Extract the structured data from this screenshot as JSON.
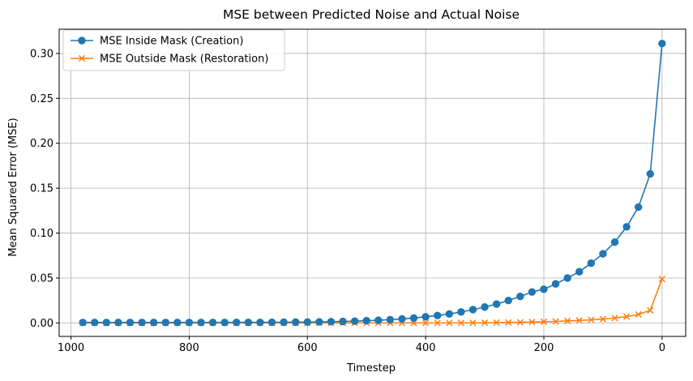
{
  "chart_data": {
    "type": "line",
    "title": "MSE between Predicted Noise and Actual Noise",
    "xlabel": "Timestep",
    "ylabel": "Mean Squared Error (MSE)",
    "xlim": [
      1020,
      -40
    ],
    "ylim": [
      -0.015,
      0.327
    ],
    "x_inverted": true,
    "grid": true,
    "legend_position": "top-left",
    "xticks": [
      1000,
      800,
      600,
      400,
      200,
      0
    ],
    "xtick_labels": [
      "1000",
      "800",
      "600",
      "400",
      "200",
      "0"
    ],
    "yticks": [
      0.0,
      0.05,
      0.1,
      0.15,
      0.2,
      0.25,
      0.3
    ],
    "ytick_labels": [
      "0.00",
      "0.05",
      "0.10",
      "0.15",
      "0.20",
      "0.25",
      "0.30"
    ],
    "x": [
      980,
      960,
      940,
      920,
      900,
      880,
      860,
      840,
      820,
      800,
      780,
      760,
      740,
      720,
      700,
      680,
      660,
      640,
      620,
      600,
      580,
      560,
      540,
      520,
      500,
      480,
      460,
      440,
      420,
      400,
      380,
      360,
      340,
      320,
      300,
      280,
      260,
      240,
      220,
      200,
      180,
      160,
      140,
      120,
      100,
      80,
      60,
      40,
      20,
      0
    ],
    "series": [
      {
        "name": "MSE Inside Mask (Creation)",
        "color": "#1f77b4",
        "marker": "circle",
        "values": [
          0.0005,
          0.0005,
          0.0005,
          0.0005,
          0.0005,
          0.0005,
          0.0005,
          0.0005,
          0.0005,
          0.0005,
          0.0005,
          0.0005,
          0.0005,
          0.0006,
          0.0006,
          0.0006,
          0.0007,
          0.0008,
          0.0009,
          0.001,
          0.0012,
          0.0014,
          0.0017,
          0.002,
          0.0025,
          0.003,
          0.0037,
          0.0045,
          0.0055,
          0.0068,
          0.0083,
          0.01,
          0.0122,
          0.0148,
          0.0177,
          0.021,
          0.025,
          0.0295,
          0.0345,
          0.0375,
          0.0435,
          0.05,
          0.057,
          0.0665,
          0.077,
          0.09,
          0.107,
          0.129,
          0.166,
          0.311
        ]
      },
      {
        "name": "MSE Outside Mask (Restoration)",
        "color": "#ff7f0e",
        "marker": "x",
        "values": [
          0.0,
          0.0,
          0.0,
          0.0,
          0.0,
          0.0,
          0.0,
          0.0,
          0.0,
          0.0,
          0.0,
          0.0,
          0.0,
          0.0,
          0.0,
          0.0,
          0.0,
          0.0,
          0.0,
          0.0,
          0.0,
          0.0,
          0.0,
          0.0,
          0.0,
          0.0,
          0.0,
          0.0,
          0.0,
          0.0,
          0.0,
          0.0,
          0.0,
          0.0001,
          0.0002,
          0.0003,
          0.0005,
          0.0007,
          0.001,
          0.0013,
          0.0017,
          0.0022,
          0.0028,
          0.0035,
          0.0043,
          0.0054,
          0.007,
          0.0095,
          0.014,
          0.049
        ]
      }
    ]
  }
}
